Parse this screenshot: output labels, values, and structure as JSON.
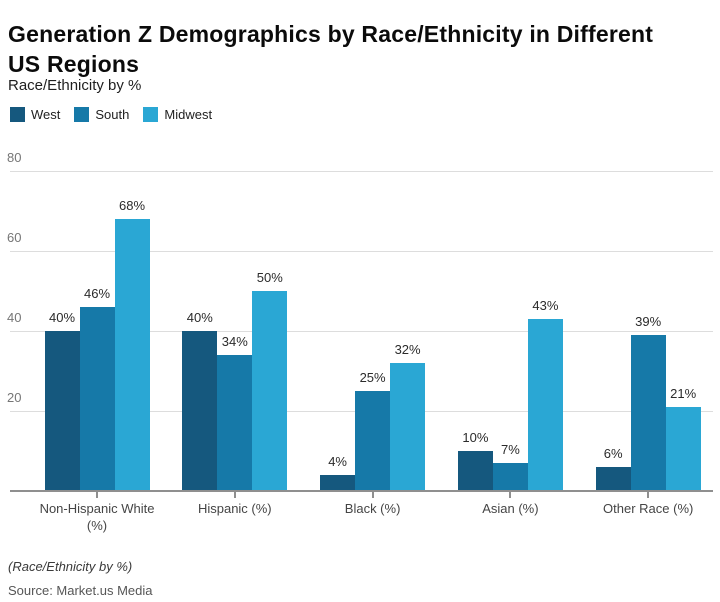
{
  "header": {
    "title": "Generation Z Demographics by Race/Ethnicity in Different US Regions",
    "title_line1": "Generation Z Demographics by Race/Ethnicity in Different",
    "title_line2": "US Regions",
    "subtitle": "Race/Ethnicity by %"
  },
  "chart_data": {
    "type": "bar",
    "title": "Generation Z Demographics by Race/Ethnicity in Different US Regions",
    "subtitle": "Race/Ethnicity by %",
    "categories": [
      "Non-Hispanic White (%)",
      "Hispanic (%)",
      "Black (%)",
      "Asian (%)",
      "Other Race (%)"
    ],
    "series": [
      {
        "name": "West",
        "color": "#15587E",
        "values": [
          40,
          40,
          4,
          10,
          6
        ]
      },
      {
        "name": "South",
        "color": "#1679A8",
        "values": [
          46,
          34,
          25,
          7,
          39
        ]
      },
      {
        "name": "Midwest",
        "color": "#2AA7D4",
        "values": [
          68,
          50,
          32,
          43,
          21
        ]
      }
    ],
    "value_suffix": "%",
    "xlabel": "",
    "ylabel": "",
    "ylim": [
      0,
      88
    ],
    "yticks": [
      20,
      40,
      60,
      80
    ],
    "grid": "horizontal",
    "legend_position": "top-left",
    "data_labels": true
  },
  "footer": {
    "note": "(Race/Ethnicity by %)",
    "source": "Source: Market.us Media"
  },
  "colors": {
    "gridline": "#DDDDDD",
    "axis_line": "#8F8F8F",
    "title_text": "#0B0B0B",
    "y_label_text": "#767676",
    "x_label_text": "#454545",
    "data_label_text": "#2B2B2B"
  }
}
